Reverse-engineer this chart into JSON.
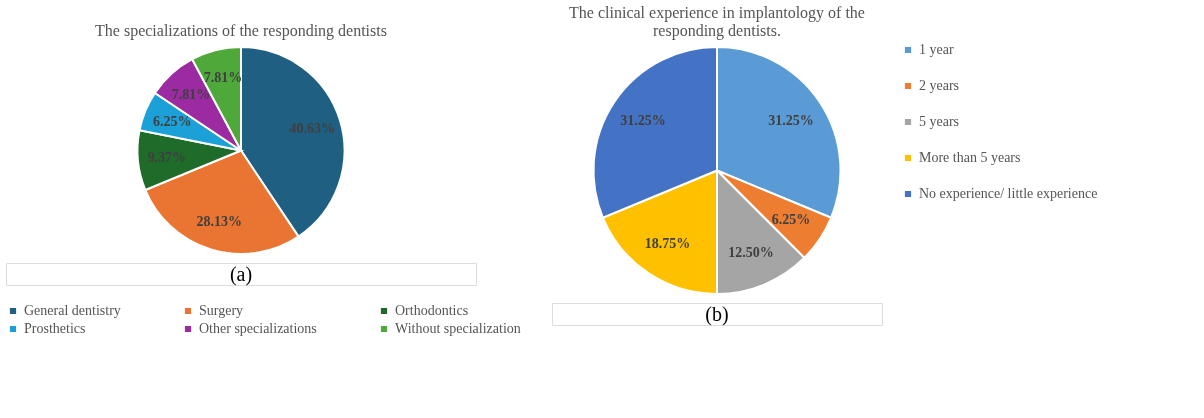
{
  "chart_data": [
    {
      "type": "pie",
      "title": "The specializations of the responding dentists",
      "categories": [
        "General dentistry",
        "Surgery",
        "Orthodontics",
        "Prosthetics",
        "Other specializations",
        "Without specialization"
      ],
      "values": [
        40.63,
        28.13,
        9.37,
        6.25,
        7.81,
        7.81
      ],
      "colors": [
        "#1f5f82",
        "#ea7431",
        "#1e6b2a",
        "#1ba1d8",
        "#9c2aa0",
        "#4ea83a"
      ],
      "value_labels": [
        "40.63%",
        "28.13%",
        "9.37%",
        "6.25%",
        "7.81%",
        "7.81%"
      ],
      "legend": "bottom",
      "annotations": [
        "(a)"
      ]
    },
    {
      "type": "pie",
      "title": "The clinical experience in implantology of the responding dentists.",
      "categories": [
        "1 year",
        "2 years",
        "5 years",
        "More than 5 years",
        "No experience/ little experience"
      ],
      "values": [
        31.25,
        6.25,
        12.5,
        18.75,
        31.25
      ],
      "colors": [
        "#5b9bd5",
        "#ed7d31",
        "#a5a5a5",
        "#ffc000",
        "#4472c4"
      ],
      "value_labels": [
        "31.25%",
        "6.25%",
        "12.50%",
        "18.75%",
        "31.25%"
      ],
      "legend": "right",
      "annotations": [
        "(b)"
      ]
    }
  ]
}
